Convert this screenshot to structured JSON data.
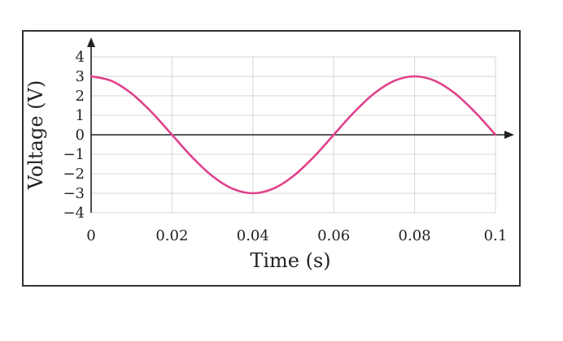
{
  "chart_data": {
    "type": "line",
    "title": "",
    "xlabel": "Time (s)",
    "ylabel": "Voltage (V)",
    "xlim": [
      0,
      0.1
    ],
    "ylim": [
      -4,
      4
    ],
    "x_ticks": [
      0,
      0.02,
      0.04,
      0.06,
      0.08,
      0.1
    ],
    "x_tick_labels": [
      "0",
      "0.02",
      "0.04",
      "0.06",
      "0.08",
      "0.1"
    ],
    "y_ticks": [
      4,
      3,
      2,
      1,
      0,
      -1,
      -2,
      -3,
      -4
    ],
    "y_tick_labels": [
      "4",
      "3",
      "2",
      "1",
      "0",
      "−1",
      "−2",
      "−3",
      "−4"
    ],
    "grid": true,
    "series": [
      {
        "color": "#e0408a",
        "x": [
          0,
          0.005,
          0.01,
          0.015,
          0.02,
          0.025,
          0.03,
          0.035,
          0.04,
          0.045,
          0.05,
          0.055,
          0.06,
          0.065,
          0.07,
          0.075,
          0.08,
          0.085,
          0.09,
          0.095,
          0.1
        ],
        "y": [
          3,
          2.77,
          2.12,
          1.15,
          0,
          -1.15,
          -2.12,
          -2.77,
          -3,
          -2.77,
          -2.12,
          -1.15,
          0,
          1.15,
          2.12,
          2.77,
          3,
          2.77,
          2.12,
          1.15,
          0
        ]
      }
    ]
  }
}
